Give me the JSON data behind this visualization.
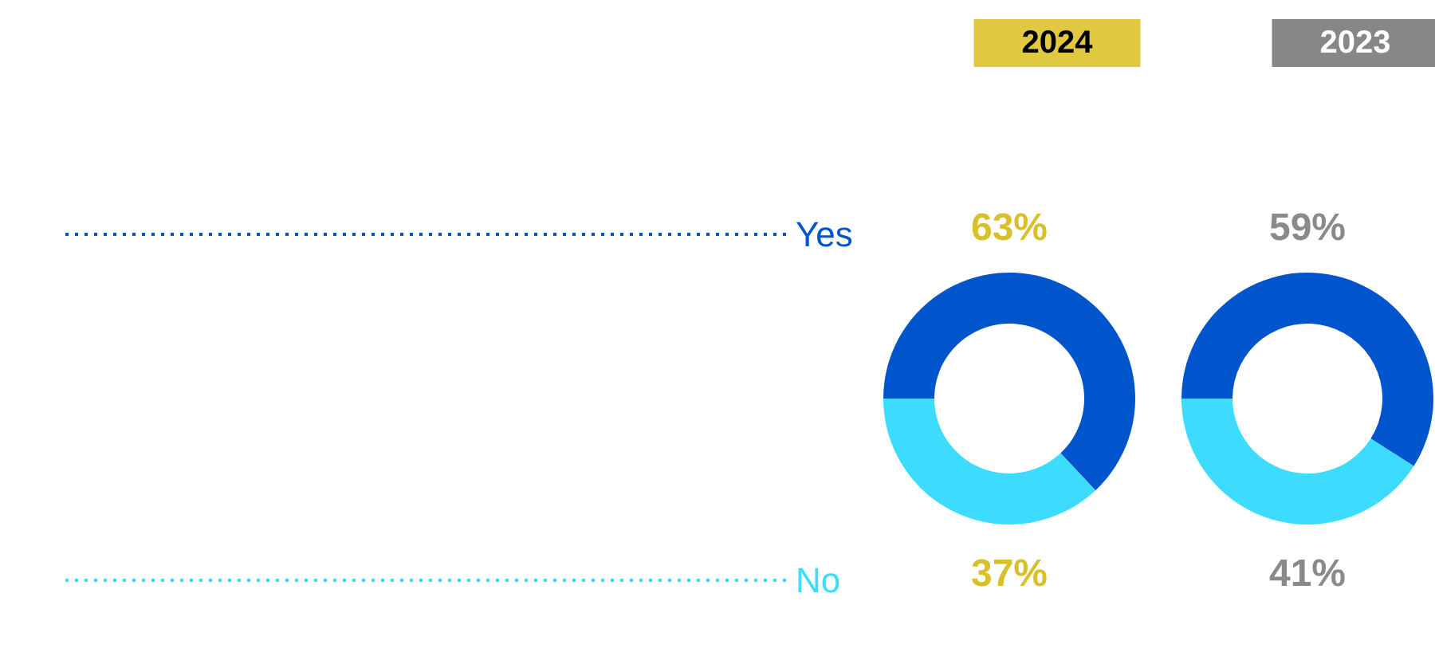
{
  "chart_data": {
    "type": "donut",
    "categories": [
      "Yes",
      "No"
    ],
    "colors": [
      "#0055cc",
      "#3ddcff"
    ],
    "legend": "left",
    "series": [
      {
        "name": "2024",
        "values": [
          63,
          37
        ],
        "value_labels": [
          "63%",
          "37%"
        ]
      },
      {
        "name": "2023",
        "values": [
          59,
          41
        ],
        "value_labels": [
          "59%",
          "41%"
        ]
      }
    ]
  }
}
